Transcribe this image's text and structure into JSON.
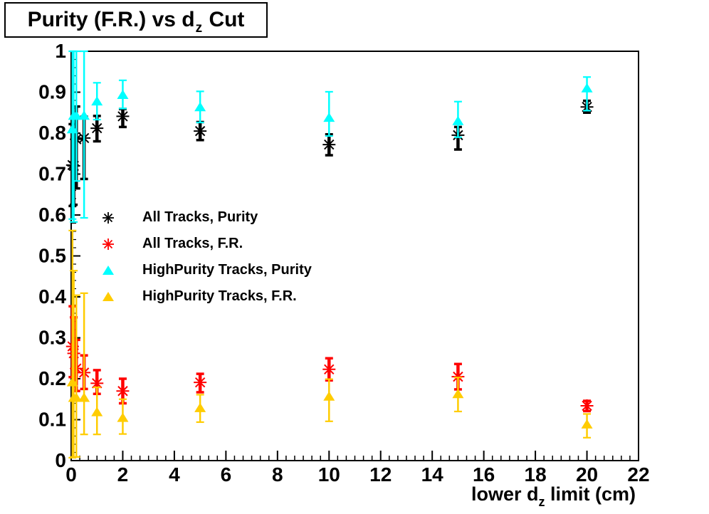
{
  "title": {
    "pre": "Purity (F.R.) vs d",
    "sub": "z",
    "post": " Cut"
  },
  "axes": {
    "x": {
      "label_pre": "lower d",
      "label_sub": "z",
      "label_post": " limit (cm)",
      "min": 0,
      "max": 22,
      "major_values": [
        0,
        2,
        4,
        6,
        8,
        10,
        12,
        14,
        16,
        18,
        20,
        22
      ],
      "major_labels": [
        "0",
        "2",
        "4",
        "6",
        "8",
        "10",
        "12",
        "14",
        "16",
        "18",
        "20",
        "22"
      ],
      "minor_divs": 6
    },
    "y": {
      "min": 0,
      "max": 1,
      "major_values": [
        0,
        0.1,
        0.2,
        0.3,
        0.4,
        0.5,
        0.6,
        0.7,
        0.8,
        0.9,
        1
      ],
      "major_labels": [
        "0",
        "0.1",
        "0.2",
        "0.3",
        "0.4",
        "0.5",
        "0.6",
        "0.7",
        "0.8",
        "0.9",
        "1"
      ],
      "minor_divs": 5
    }
  },
  "chart_data": {
    "type": "scatter",
    "title": "Purity (F.R.) vs d_z Cut",
    "xlabel": "lower d_z limit (cm)",
    "ylabel": "",
    "xlim": [
      0,
      22
    ],
    "ylim": [
      0,
      1
    ],
    "grid": false,
    "legend_position": "upper-left-inside",
    "series": [
      {
        "name": "All Tracks, Purity",
        "marker": "asterisk",
        "color": "#000000",
        "points": [
          {
            "x": 0.05,
            "y": 0.722,
            "ey_lo": 0.1,
            "ey_hi": 0.1
          },
          {
            "x": 0.1,
            "y": 0.72,
            "ey_lo": 0.095,
            "ey_hi": 0.09
          },
          {
            "x": 0.2,
            "y": 0.785,
            "ey_lo": 0.12,
            "ey_hi": 0.08
          },
          {
            "x": 0.5,
            "y": 0.788,
            "ey_lo": 0.1,
            "ey_hi": 0.052
          },
          {
            "x": 1,
            "y": 0.812,
            "ey_lo": 0.032,
            "ey_hi": 0.03
          },
          {
            "x": 2,
            "y": 0.841,
            "ey_lo": 0.026,
            "ey_hi": 0.018
          },
          {
            "x": 5,
            "y": 0.805,
            "ey_lo": 0.022,
            "ey_hi": 0.022
          },
          {
            "x": 10,
            "y": 0.772,
            "ey_lo": 0.026,
            "ey_hi": 0.025
          },
          {
            "x": 15,
            "y": 0.795,
            "ey_lo": 0.035,
            "ey_hi": 0.02
          },
          {
            "x": 20,
            "y": 0.864,
            "ey_lo": 0.014,
            "ey_hi": 0.015
          }
        ]
      },
      {
        "name": "All Tracks, F.R.",
        "marker": "asterisk",
        "color": "#ff0000",
        "points": [
          {
            "x": 0.05,
            "y": 0.279,
            "ey_lo": 0.075,
            "ey_hi": 0.098
          },
          {
            "x": 0.1,
            "y": 0.262,
            "ey_lo": 0.07,
            "ey_hi": 0.088
          },
          {
            "x": 0.2,
            "y": 0.225,
            "ey_lo": 0.055,
            "ey_hi": 0.07
          },
          {
            "x": 0.5,
            "y": 0.215,
            "ey_lo": 0.04,
            "ey_hi": 0.042
          },
          {
            "x": 1,
            "y": 0.189,
            "ey_lo": 0.026,
            "ey_hi": 0.032
          },
          {
            "x": 2,
            "y": 0.17,
            "ey_lo": 0.03,
            "ey_hi": 0.03
          },
          {
            "x": 5,
            "y": 0.191,
            "ey_lo": 0.024,
            "ey_hi": 0.021
          },
          {
            "x": 10,
            "y": 0.223,
            "ey_lo": 0.027,
            "ey_hi": 0.027
          },
          {
            "x": 15,
            "y": 0.205,
            "ey_lo": 0.031,
            "ey_hi": 0.031
          },
          {
            "x": 20,
            "y": 0.134,
            "ey_lo": 0.013,
            "ey_hi": 0.012
          }
        ]
      },
      {
        "name": "HighPurity Tracks, Purity",
        "marker": "triangle",
        "color": "#00ffff",
        "points": [
          {
            "x": 0.05,
            "y": 0.81,
            "ey_lo": 0.22,
            "ey_hi": 0.19
          },
          {
            "x": 0.1,
            "y": 0.843,
            "ey_lo": 0.26,
            "ey_hi": 0.157
          },
          {
            "x": 0.2,
            "y": 0.843,
            "ey_lo": 0.16,
            "ey_hi": 0.157
          },
          {
            "x": 0.5,
            "y": 0.843,
            "ey_lo": 0.25,
            "ey_hi": 0.157
          },
          {
            "x": 1,
            "y": 0.878,
            "ey_lo": 0.045,
            "ey_hi": 0.045
          },
          {
            "x": 2,
            "y": 0.894,
            "ey_lo": 0.034,
            "ey_hi": 0.035
          },
          {
            "x": 5,
            "y": 0.864,
            "ey_lo": 0.038,
            "ey_hi": 0.038
          },
          {
            "x": 10,
            "y": 0.838,
            "ey_lo": 0.045,
            "ey_hi": 0.063
          },
          {
            "x": 15,
            "y": 0.83,
            "ey_lo": 0.04,
            "ey_hi": 0.047
          },
          {
            "x": 20,
            "y": 0.91,
            "ey_lo": 0.055,
            "ey_hi": 0.027
          }
        ]
      },
      {
        "name": "HighPurity Tracks, F.R.",
        "marker": "triangle",
        "color": "#ffcc00",
        "points": [
          {
            "x": 0.05,
            "y": 0.192,
            "ey_lo": 0.185,
            "ey_hi": 0.37
          },
          {
            "x": 0.1,
            "y": 0.154,
            "ey_lo": 0.145,
            "ey_hi": 0.31
          },
          {
            "x": 0.2,
            "y": 0.154,
            "ey_lo": 0.145,
            "ey_hi": 0.25
          },
          {
            "x": 0.5,
            "y": 0.154,
            "ey_lo": 0.09,
            "ey_hi": 0.255
          },
          {
            "x": 1,
            "y": 0.119,
            "ey_lo": 0.055,
            "ey_hi": 0.06
          },
          {
            "x": 2,
            "y": 0.105,
            "ey_lo": 0.04,
            "ey_hi": 0.045
          },
          {
            "x": 5,
            "y": 0.129,
            "ey_lo": 0.035,
            "ey_hi": 0.032
          },
          {
            "x": 10,
            "y": 0.157,
            "ey_lo": 0.061,
            "ey_hi": 0.042
          },
          {
            "x": 15,
            "y": 0.163,
            "ey_lo": 0.043,
            "ey_hi": 0.04
          },
          {
            "x": 20,
            "y": 0.089,
            "ey_lo": 0.033,
            "ey_hi": 0.025
          }
        ]
      }
    ]
  },
  "colors": {
    "frame": "#000000",
    "background": "#ffffff",
    "black_series": "#000000",
    "red_series": "#ff0000",
    "cyan_series": "#00ffff",
    "yellow_series": "#ffcc00"
  }
}
